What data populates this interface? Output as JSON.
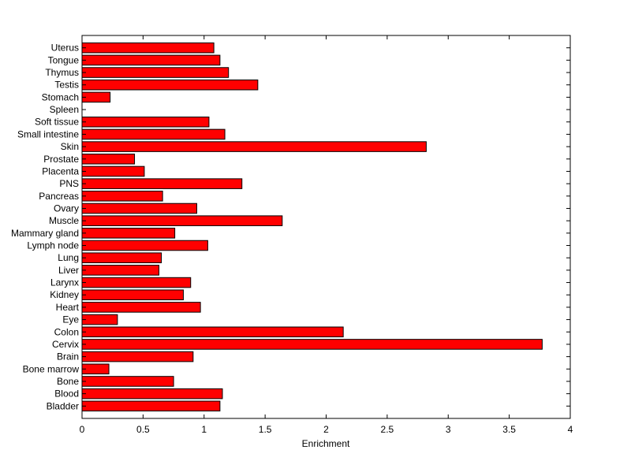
{
  "chart_data": {
    "type": "bar",
    "orientation": "horizontal",
    "title": "",
    "xlabel": "Enrichment",
    "ylabel": "",
    "xlim": [
      0,
      4
    ],
    "xticks": [
      "0",
      "0.5",
      "1",
      "1.5",
      "2",
      "2.5",
      "3",
      "3.5",
      "4"
    ],
    "grid": false,
    "legend": "none",
    "bar_color": "#ff0000",
    "bar_edge_color": "#000000",
    "categories": [
      "Bladder",
      "Blood",
      "Bone",
      "Bone marrow",
      "Brain",
      "Cervix",
      "Colon",
      "Eye",
      "Heart",
      "Kidney",
      "Larynx",
      "Liver",
      "Lung",
      "Lymph node",
      "Mammary gland",
      "Muscle",
      "Ovary",
      "Pancreas",
      "PNS",
      "Placenta",
      "Prostate",
      "Skin",
      "Small intestine",
      "Soft tissue",
      "Spleen",
      "Stomach",
      "Testis",
      "Thymus",
      "Tongue",
      "Uterus"
    ],
    "values": [
      1.13,
      1.15,
      0.75,
      0.22,
      0.91,
      3.77,
      2.14,
      0.29,
      0.97,
      0.83,
      0.89,
      0.63,
      0.65,
      1.03,
      0.76,
      1.64,
      0.94,
      0.66,
      1.31,
      0.51,
      0.43,
      2.82,
      1.17,
      1.04,
      0.0,
      0.23,
      1.44,
      1.2,
      1.13,
      1.08
    ]
  }
}
